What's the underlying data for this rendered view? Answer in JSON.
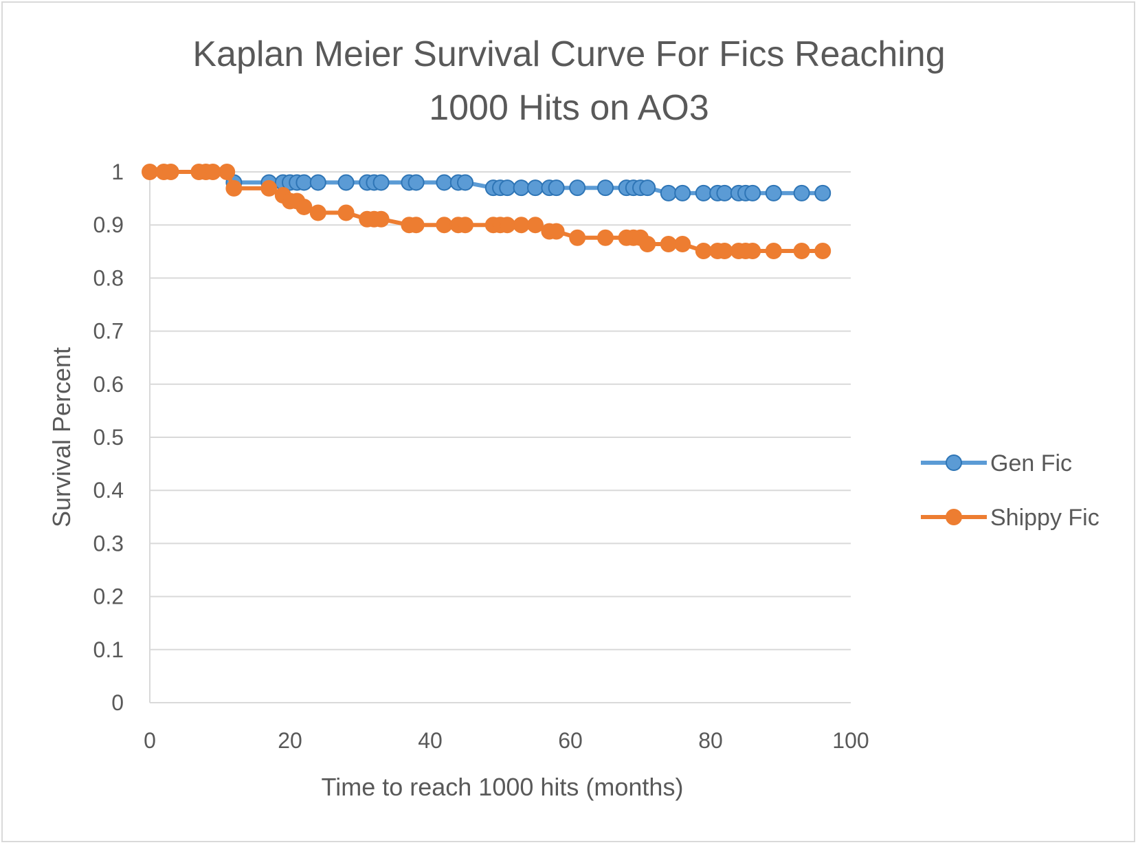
{
  "chart_data": {
    "type": "line",
    "title_lines": [
      "Kaplan Meier Survival Curve For Fics Reaching",
      "1000 Hits on AO3"
    ],
    "xlabel": "Time to reach 1000 hits (months)",
    "ylabel": "Survival Percent",
    "xlim": [
      0,
      100
    ],
    "ylim": [
      0,
      1
    ],
    "x_ticks": [
      "0",
      "20",
      "40",
      "60",
      "80",
      "100"
    ],
    "y_ticks": [
      "0",
      "0.1",
      "0.2",
      "0.3",
      "0.4",
      "0.5",
      "0.6",
      "0.7",
      "0.8",
      "0.9",
      "1"
    ],
    "grid": true,
    "legend_position": "right",
    "series": [
      {
        "name": "Gen Fic",
        "color": "#5b9bd5",
        "edge_color": "#2e75b6",
        "points": [
          [
            12,
            0.98
          ],
          [
            17,
            0.98
          ],
          [
            19,
            0.98
          ],
          [
            20,
            0.98
          ],
          [
            21,
            0.98
          ],
          [
            22,
            0.98
          ],
          [
            24,
            0.98
          ],
          [
            28,
            0.98
          ],
          [
            31,
            0.98
          ],
          [
            32,
            0.98
          ],
          [
            33,
            0.98
          ],
          [
            37,
            0.98
          ],
          [
            38,
            0.98
          ],
          [
            42,
            0.98
          ],
          [
            44,
            0.98
          ],
          [
            45,
            0.98
          ],
          [
            49,
            0.97
          ],
          [
            50,
            0.97
          ],
          [
            51,
            0.97
          ],
          [
            53,
            0.97
          ],
          [
            55,
            0.97
          ],
          [
            57,
            0.97
          ],
          [
            58,
            0.97
          ],
          [
            61,
            0.97
          ],
          [
            65,
            0.97
          ],
          [
            68,
            0.97
          ],
          [
            69,
            0.97
          ],
          [
            70,
            0.97
          ],
          [
            71,
            0.97
          ],
          [
            74,
            0.96
          ],
          [
            76,
            0.96
          ],
          [
            79,
            0.96
          ],
          [
            81,
            0.96
          ],
          [
            82,
            0.96
          ],
          [
            84,
            0.96
          ],
          [
            85,
            0.96
          ],
          [
            86,
            0.96
          ],
          [
            89,
            0.96
          ],
          [
            93,
            0.96
          ],
          [
            96,
            0.96
          ]
        ]
      },
      {
        "name": "Shippy Fic",
        "color": "#ed7d31",
        "edge_color": "#ed7d31",
        "points": [
          [
            0,
            1.0
          ],
          [
            2,
            1.0
          ],
          [
            3,
            1.0
          ],
          [
            7,
            1.0
          ],
          [
            8,
            1.0
          ],
          [
            9,
            1.0
          ],
          [
            11,
            1.0
          ],
          [
            12,
            0.969
          ],
          [
            17,
            0.969
          ],
          [
            19,
            0.956
          ],
          [
            20,
            0.945
          ],
          [
            21,
            0.945
          ],
          [
            22,
            0.934
          ],
          [
            24,
            0.923
          ],
          [
            28,
            0.923
          ],
          [
            31,
            0.911
          ],
          [
            32,
            0.911
          ],
          [
            33,
            0.911
          ],
          [
            37,
            0.9
          ],
          [
            38,
            0.9
          ],
          [
            42,
            0.9
          ],
          [
            44,
            0.9
          ],
          [
            45,
            0.9
          ],
          [
            49,
            0.9
          ],
          [
            50,
            0.9
          ],
          [
            51,
            0.9
          ],
          [
            53,
            0.9
          ],
          [
            55,
            0.9
          ],
          [
            57,
            0.888
          ],
          [
            58,
            0.888
          ],
          [
            61,
            0.876
          ],
          [
            65,
            0.876
          ],
          [
            68,
            0.876
          ],
          [
            69,
            0.876
          ],
          [
            70,
            0.876
          ],
          [
            71,
            0.864
          ],
          [
            74,
            0.864
          ],
          [
            76,
            0.864
          ],
          [
            79,
            0.851
          ],
          [
            81,
            0.851
          ],
          [
            82,
            0.851
          ],
          [
            84,
            0.851
          ],
          [
            85,
            0.851
          ],
          [
            86,
            0.851
          ],
          [
            89,
            0.851
          ],
          [
            93,
            0.851
          ],
          [
            96,
            0.851
          ]
        ]
      }
    ]
  }
}
